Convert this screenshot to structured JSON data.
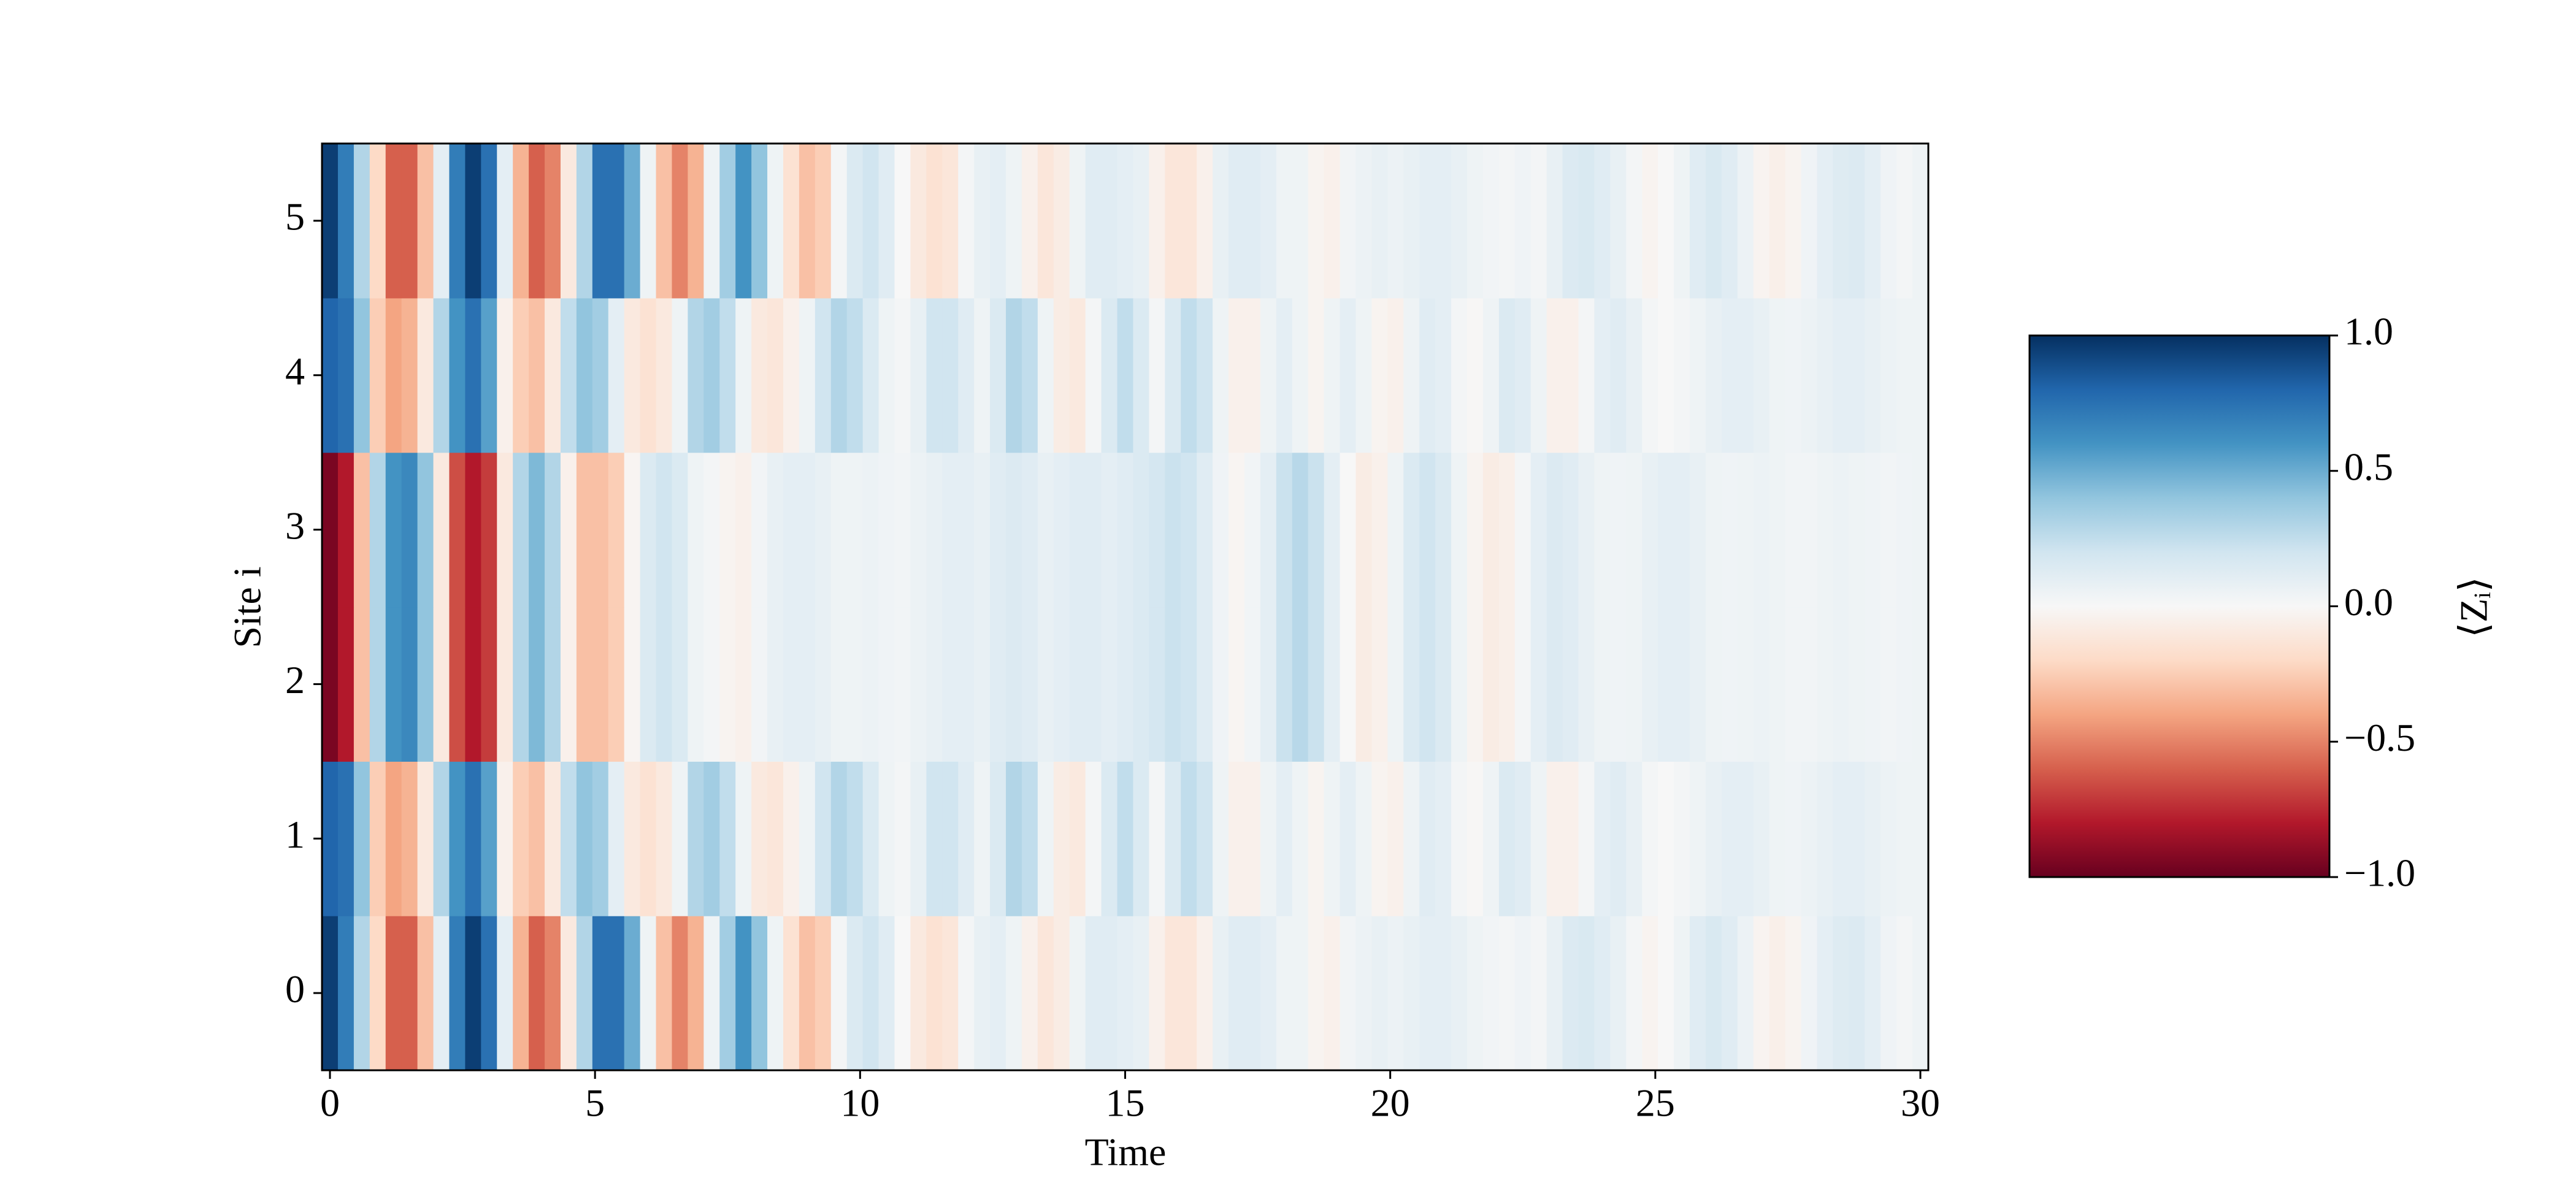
{
  "chart_data": {
    "type": "heatmap",
    "xlabel": "Time",
    "ylabel": "Site i",
    "colorbar_label": "⟨Zᵢ⟩",
    "colormap": "RdBu",
    "colormap_colors": [
      "#67001f",
      "#b2182b",
      "#d6604d",
      "#f4a582",
      "#fddbc7",
      "#f7f7f7",
      "#d1e5f0",
      "#92c5de",
      "#4393c3",
      "#2166ac",
      "#053061"
    ],
    "zlim": [
      -1,
      1
    ],
    "zticks": [
      {
        "value": 1,
        "label": "1.0"
      },
      {
        "value": 0.5,
        "label": "0.5"
      },
      {
        "value": 0,
        "label": "0.0"
      },
      {
        "value": -0.5,
        "label": "−0.5"
      },
      {
        "value": -1,
        "label": "−1.0"
      }
    ],
    "xlim": [
      -0.15,
      30.15
    ],
    "xticks": [
      0,
      5,
      10,
      15,
      20,
      25,
      30
    ],
    "ylim": [
      -0.5,
      5.5
    ],
    "yticks": [
      0,
      1,
      2,
      3,
      4,
      5
    ],
    "y": [
      0,
      1,
      2,
      3,
      4,
      5
    ],
    "x": [
      0,
      0.3,
      0.6,
      0.9,
      1.2,
      1.5,
      1.8,
      2.1,
      2.4,
      2.7,
      3,
      3.3,
      3.6,
      3.9,
      4.2,
      4.5,
      4.8,
      5.1,
      5.4,
      5.7,
      6,
      6.3,
      6.6,
      6.9,
      7.2,
      7.5,
      7.8,
      8.1,
      8.4,
      8.7,
      9,
      9.3,
      9.6,
      9.9,
      10.2,
      10.5,
      10.8,
      11.1,
      11.4,
      11.7,
      12,
      12.3,
      12.6,
      12.9,
      13.2,
      13.5,
      13.8,
      14.1,
      14.4,
      14.7,
      15,
      15.3,
      15.6,
      15.9,
      16.2,
      16.5,
      16.8,
      17.1,
      17.4,
      17.7,
      18,
      18.3,
      18.6,
      18.9,
      19.2,
      19.5,
      19.8,
      20.1,
      20.4,
      20.7,
      21,
      21.3,
      21.6,
      21.9,
      22.2,
      22.5,
      22.8,
      23.1,
      23.4,
      23.7,
      24,
      24.3,
      24.6,
      24.9,
      25.2,
      25.5,
      25.8,
      26.1,
      26.4,
      26.7,
      27,
      27.3,
      27.6,
      27.9,
      28.2,
      28.5,
      28.8,
      29.1,
      29.4,
      29.7,
      30
    ],
    "z": [
      [
        0.95,
        0.7,
        0.3,
        -0.2,
        -0.6,
        -0.6,
        -0.3,
        0.1,
        0.7,
        0.95,
        0.75,
        0.1,
        -0.35,
        -0.6,
        -0.5,
        -0.1,
        0.3,
        0.75,
        0.75,
        0.5,
        0.05,
        -0.3,
        -0.5,
        -0.35,
        0.05,
        0.35,
        0.6,
        0.4,
        0.05,
        -0.15,
        -0.3,
        -0.25,
        0.02,
        0.15,
        0.2,
        0.12,
        0,
        -0.1,
        -0.15,
        -0.12,
        0.02,
        0.08,
        0.1,
        0.05,
        -0.05,
        -0.12,
        -0.08,
        0.05,
        0.12,
        0.12,
        0.1,
        0.08,
        -0.05,
        -0.12,
        -0.12,
        -0.05,
        0.08,
        0.12,
        0.12,
        0.1,
        0.05,
        0.05,
        -0.03,
        -0.05,
        0.03,
        0.06,
        0.08,
        0.06,
        0.08,
        0.1,
        0.1,
        0.08,
        0.05,
        0.03,
        0.02,
        0.04,
        0.02,
        0.08,
        0.14,
        0.16,
        0.12,
        0.08,
        0.02,
        -0.03,
        0,
        0.05,
        0.12,
        0.16,
        0.12,
        0.06,
        -0.03,
        -0.06,
        -0.03,
        0.04,
        0.1,
        0.13,
        0.14,
        0.1,
        0.04,
        0.02,
        0.05
      ],
      [
        0.8,
        0.75,
        0.4,
        -0.25,
        -0.4,
        -0.35,
        -0.1,
        0.3,
        0.6,
        0.75,
        0.55,
        -0.05,
        -0.25,
        -0.3,
        -0.1,
        0.25,
        0.4,
        0.35,
        0.1,
        -0.1,
        -0.15,
        -0.1,
        0.05,
        0.3,
        0.35,
        0.25,
        0.05,
        -0.1,
        -0.12,
        -0.05,
        0.05,
        0.2,
        0.3,
        0.25,
        0.15,
        0.05,
        0.02,
        0.08,
        0.2,
        0.2,
        0.12,
        0.05,
        0.15,
        0.3,
        0.25,
        0.05,
        -0.08,
        -0.1,
        0.02,
        0.15,
        0.25,
        0.15,
        0.02,
        0.15,
        0.25,
        0.2,
        0.05,
        -0.05,
        -0.05,
        0.05,
        0.1,
        0.05,
        -0.03,
        0.05,
        0.1,
        0.05,
        -0.03,
        -0.05,
        0.05,
        0.12,
        0.1,
        0.02,
        -0.01,
        0.05,
        0.15,
        0.12,
        0.05,
        -0.05,
        -0.05,
        0.02,
        0.1,
        0.12,
        0.08,
        0.02,
        0,
        0.02,
        0.05,
        0.08,
        0.1,
        0.1,
        0.08,
        0.05,
        0.04,
        0.06,
        0.08,
        0.1,
        0.1,
        0.08,
        0.06,
        0.05,
        0.05
      ],
      [
        -0.95,
        -0.8,
        -0.3,
        0.3,
        0.6,
        0.65,
        0.4,
        -0.1,
        -0.65,
        -0.8,
        -0.7,
        -0.1,
        0.3,
        0.45,
        0.3,
        -0.05,
        -0.3,
        -0.3,
        -0.25,
        -0.02,
        0.15,
        0.2,
        0.15,
        0.05,
        0.02,
        -0.03,
        -0.05,
        0.03,
        0.08,
        0.1,
        0.1,
        0.08,
        0.05,
        0.05,
        0.06,
        0.04,
        0.03,
        0.06,
        0.08,
        0.1,
        0.1,
        0.08,
        0.12,
        0.14,
        0.12,
        0.08,
        0.1,
        0.12,
        0.12,
        0.1,
        0.12,
        0.15,
        0.18,
        0.22,
        0.2,
        0.12,
        0.04,
        -0.02,
        0.03,
        0.1,
        0.22,
        0.28,
        0.22,
        0.1,
        0,
        -0.08,
        -0.05,
        0.05,
        0.15,
        0.2,
        0.15,
        0.05,
        -0.03,
        -0.08,
        -0.06,
        0.02,
        0.1,
        0.14,
        0.12,
        0.08,
        0.05,
        0.04,
        0.05,
        0.08,
        0.1,
        0.1,
        0.08,
        0.05,
        0.04,
        0.05,
        0.06,
        0.05,
        0.03,
        0.03,
        0.05,
        0.06,
        0.05,
        0.04,
        0.03,
        0.04,
        0.05
      ],
      [
        -0.95,
        -0.8,
        -0.3,
        0.3,
        0.6,
        0.65,
        0.4,
        -0.1,
        -0.65,
        -0.8,
        -0.7,
        -0.1,
        0.3,
        0.45,
        0.3,
        -0.05,
        -0.3,
        -0.3,
        -0.25,
        -0.02,
        0.15,
        0.2,
        0.15,
        0.05,
        0.02,
        -0.03,
        -0.05,
        0.03,
        0.08,
        0.1,
        0.1,
        0.08,
        0.05,
        0.05,
        0.06,
        0.04,
        0.03,
        0.06,
        0.08,
        0.1,
        0.1,
        0.08,
        0.12,
        0.14,
        0.12,
        0.08,
        0.1,
        0.12,
        0.12,
        0.1,
        0.12,
        0.15,
        0.18,
        0.22,
        0.2,
        0.12,
        0.04,
        -0.02,
        0.03,
        0.1,
        0.22,
        0.28,
        0.22,
        0.1,
        0,
        -0.08,
        -0.05,
        0.05,
        0.15,
        0.2,
        0.15,
        0.05,
        -0.03,
        -0.08,
        -0.06,
        0.02,
        0.1,
        0.14,
        0.12,
        0.08,
        0.05,
        0.04,
        0.05,
        0.08,
        0.1,
        0.1,
        0.08,
        0.05,
        0.04,
        0.05,
        0.06,
        0.05,
        0.03,
        0.03,
        0.05,
        0.06,
        0.05,
        0.04,
        0.03,
        0.04,
        0.05
      ],
      [
        0.8,
        0.75,
        0.4,
        -0.25,
        -0.4,
        -0.35,
        -0.1,
        0.3,
        0.6,
        0.75,
        0.55,
        -0.05,
        -0.25,
        -0.3,
        -0.1,
        0.25,
        0.4,
        0.35,
        0.1,
        -0.1,
        -0.15,
        -0.1,
        0.05,
        0.3,
        0.35,
        0.25,
        0.05,
        -0.1,
        -0.12,
        -0.05,
        0.05,
        0.2,
        0.3,
        0.25,
        0.15,
        0.05,
        0.02,
        0.08,
        0.2,
        0.2,
        0.12,
        0.05,
        0.15,
        0.3,
        0.25,
        0.05,
        -0.08,
        -0.1,
        0.02,
        0.15,
        0.25,
        0.15,
        0.02,
        0.15,
        0.25,
        0.2,
        0.05,
        -0.05,
        -0.05,
        0.05,
        0.1,
        0.05,
        -0.03,
        0.05,
        0.1,
        0.05,
        -0.03,
        -0.05,
        0.05,
        0.12,
        0.1,
        0.02,
        -0.01,
        0.05,
        0.15,
        0.12,
        0.05,
        -0.05,
        -0.05,
        0.02,
        0.1,
        0.12,
        0.08,
        0.02,
        0,
        0.02,
        0.05,
        0.08,
        0.1,
        0.1,
        0.08,
        0.05,
        0.04,
        0.06,
        0.08,
        0.1,
        0.1,
        0.08,
        0.06,
        0.05,
        0.05
      ],
      [
        0.95,
        0.7,
        0.3,
        -0.2,
        -0.6,
        -0.6,
        -0.3,
        0.1,
        0.7,
        0.95,
        0.75,
        0.1,
        -0.35,
        -0.6,
        -0.5,
        -0.1,
        0.3,
        0.75,
        0.75,
        0.5,
        0.05,
        -0.3,
        -0.5,
        -0.35,
        0.05,
        0.35,
        0.6,
        0.4,
        0.05,
        -0.15,
        -0.3,
        -0.25,
        0.02,
        0.15,
        0.2,
        0.12,
        0,
        -0.1,
        -0.15,
        -0.12,
        0.02,
        0.08,
        0.1,
        0.05,
        -0.05,
        -0.12,
        -0.08,
        0.05,
        0.12,
        0.12,
        0.1,
        0.08,
        -0.05,
        -0.12,
        -0.12,
        -0.05,
        0.08,
        0.12,
        0.12,
        0.1,
        0.05,
        0.05,
        -0.03,
        -0.05,
        0.03,
        0.06,
        0.08,
        0.06,
        0.08,
        0.1,
        0.1,
        0.08,
        0.05,
        0.03,
        0.02,
        0.04,
        0.02,
        0.08,
        0.14,
        0.16,
        0.12,
        0.08,
        0.02,
        -0.03,
        0,
        0.05,
        0.12,
        0.16,
        0.12,
        0.06,
        -0.03,
        -0.06,
        -0.03,
        0.04,
        0.1,
        0.13,
        0.14,
        0.1,
        0.04,
        0.02,
        0.05
      ]
    ]
  }
}
